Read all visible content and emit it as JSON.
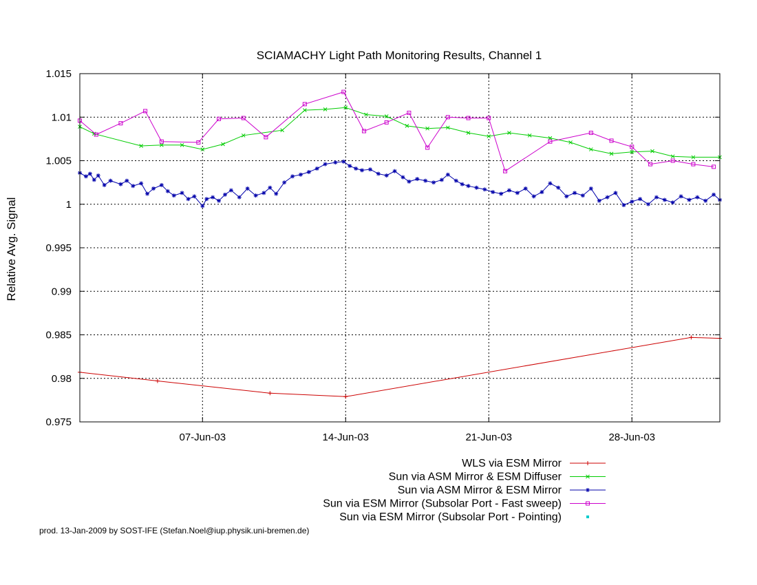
{
  "chart_data": {
    "type": "line",
    "title": "SCIAMACHY Light Path Monitoring Results, Channel 1",
    "ylabel": "Relative Avg. Signal",
    "xlabel": "",
    "x_unit": "day of June 2003",
    "xlim": [
      1,
      32.3
    ],
    "ylim": [
      0.975,
      1.015
    ],
    "yticks": [
      "1.015",
      "1.01",
      "1.005",
      "1",
      "0.995",
      "0.99",
      "0.985",
      "0.98",
      "0.975"
    ],
    "xticks": [
      {
        "x": 7,
        "label": "07-Jun-03"
      },
      {
        "x": 14,
        "label": "14-Jun-03"
      },
      {
        "x": 21,
        "label": "21-Jun-03"
      },
      {
        "x": 28,
        "label": "28-Jun-03"
      }
    ],
    "grid": true,
    "legend_position": "bottom-right",
    "series": [
      {
        "name": "WLS via ESM Mirror",
        "color": "#cc0000",
        "marker": "plus",
        "x": [
          1.0,
          4.8,
          10.3,
          14.0,
          30.9,
          32.3
        ],
        "y": [
          0.9807,
          0.9797,
          0.9783,
          0.9779,
          0.9847,
          0.9846
        ]
      },
      {
        "name": "Sun via ASM Mirror & ESM Diffuser",
        "color": "#00cc00",
        "marker": "cross",
        "x": [
          1.0,
          1.7,
          4.0,
          5.0,
          6.0,
          7.0,
          8.0,
          9.0,
          10.9,
          12.0,
          13.0,
          14.0,
          15.0,
          16.0,
          17.0,
          18.0,
          19.0,
          20.0,
          21.0,
          22.0,
          23.0,
          24.0,
          25.0,
          26.0,
          27.0,
          28.0,
          29.0,
          30.0,
          31.0,
          32.3
        ],
        "y": [
          1.0089,
          1.0081,
          1.0067,
          1.0068,
          1.0068,
          1.0063,
          1.0069,
          1.0079,
          1.0085,
          1.0108,
          1.0109,
          1.0111,
          1.0103,
          1.0101,
          1.009,
          1.0087,
          1.0088,
          1.0082,
          1.0078,
          1.0082,
          1.0079,
          1.0076,
          1.0071,
          1.0063,
          1.0058,
          1.006,
          1.0061,
          1.0055,
          1.0054,
          1.0054
        ]
      },
      {
        "name": "Sun via ASM Mirror & ESM Mirror",
        "color": "#0000aa",
        "marker": "star",
        "x": [
          1.0,
          1.3,
          1.5,
          1.7,
          1.9,
          2.2,
          2.5,
          3.0,
          3.3,
          3.6,
          4.0,
          4.3,
          4.6,
          5.0,
          5.3,
          5.6,
          6.0,
          6.3,
          6.6,
          7.0,
          7.2,
          7.5,
          7.8,
          8.1,
          8.4,
          8.8,
          9.2,
          9.6,
          10.0,
          10.3,
          10.6,
          11.0,
          11.4,
          11.8,
          12.2,
          12.6,
          13.0,
          13.5,
          13.9,
          14.2,
          14.5,
          14.8,
          15.2,
          15.6,
          16.0,
          16.4,
          16.8,
          17.1,
          17.5,
          17.9,
          18.3,
          18.7,
          19.0,
          19.4,
          19.7,
          20.0,
          20.4,
          20.8,
          21.2,
          21.6,
          22.0,
          22.4,
          22.8,
          23.2,
          23.6,
          24.0,
          24.4,
          24.8,
          25.2,
          25.6,
          26.0,
          26.4,
          26.8,
          27.2,
          27.6,
          28.0,
          28.4,
          28.8,
          29.2,
          29.6,
          30.0,
          30.4,
          30.8,
          31.2,
          31.6,
          32.0,
          32.3
        ],
        "y": [
          1.0036,
          1.0032,
          1.0035,
          1.0028,
          1.0033,
          1.0022,
          1.0027,
          1.0023,
          1.0027,
          1.0021,
          1.0024,
          1.0012,
          1.0018,
          1.0022,
          1.0015,
          1.001,
          1.0013,
          1.0006,
          1.0009,
          0.9998,
          1.0006,
          1.0008,
          1.0004,
          1.0011,
          1.0016,
          1.0008,
          1.0018,
          1.001,
          1.0013,
          1.0019,
          1.0012,
          1.0025,
          1.0032,
          1.0034,
          1.0037,
          1.0041,
          1.0046,
          1.0048,
          1.0049,
          1.0044,
          1.0041,
          1.0039,
          1.004,
          1.0035,
          1.0033,
          1.0038,
          1.0031,
          1.0026,
          1.0029,
          1.0027,
          1.0025,
          1.0028,
          1.0034,
          1.0027,
          1.0023,
          1.0021,
          1.0019,
          1.0017,
          1.0014,
          1.0012,
          1.0016,
          1.0013,
          1.0018,
          1.0009,
          1.0014,
          1.0024,
          1.0019,
          1.0009,
          1.0013,
          1.001,
          1.0018,
          1.0004,
          1.0008,
          1.0013,
          0.9999,
          1.0003,
          1.0006,
          1.0,
          1.0008,
          1.0005,
          1.0002,
          1.0009,
          1.0005,
          1.0008,
          1.0004,
          1.0011,
          1.0005
        ]
      },
      {
        "name": "Sun via ESM Mirror (Subsolar Port - Fast sweep)",
        "color": "#cc00cc",
        "marker": "square",
        "x": [
          1.0,
          1.8,
          3.0,
          4.2,
          5.0,
          6.8,
          7.8,
          9.0,
          10.1,
          12.0,
          13.9,
          14.9,
          16.0,
          17.1,
          18.0,
          19.0,
          20.0,
          21.0,
          21.8,
          24.0,
          26.0,
          27.0,
          28.0,
          28.9,
          30.0,
          31.0,
          32.0
        ],
        "y": [
          1.0096,
          1.008,
          1.0093,
          1.0107,
          1.0072,
          1.0071,
          1.0098,
          1.0099,
          1.0077,
          1.0115,
          1.0129,
          1.0084,
          1.0094,
          1.0105,
          1.0065,
          1.01,
          1.0099,
          1.0099,
          1.0038,
          1.0072,
          1.0082,
          1.0073,
          1.0066,
          1.0046,
          1.005,
          1.0046,
          1.0043
        ]
      },
      {
        "name": "Sun via ESM Mirror (Subsolar Port - Pointing)",
        "color": "#00cccc",
        "marker": "dot",
        "x": [],
        "y": []
      }
    ]
  },
  "footer": "prod. 13-Jan-2009 by SOST-IFE (Stefan.Noel@iup.physik.uni-bremen.de)"
}
